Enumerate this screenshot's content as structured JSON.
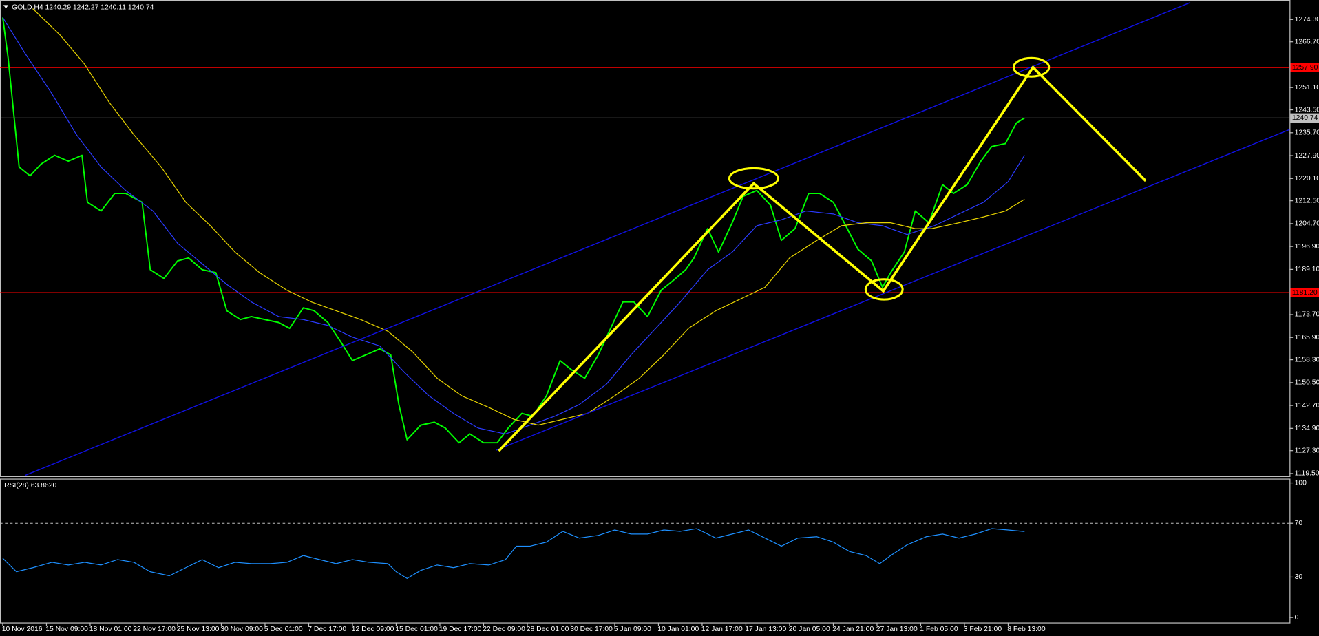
{
  "chart_data": [
    {
      "type": "line",
      "title": "GOLD,H4  1240.29 1242.27 1240.11 1240.74",
      "xlim": [
        -1,
        471
      ],
      "xticks": [
        {
          "value": 0,
          "label": "10 Nov 2016"
        },
        {
          "value": 16,
          "label": "15 Nov 09:00"
        },
        {
          "value": 32,
          "label": "18 Nov 01:00"
        },
        {
          "value": 48,
          "label": "22 Nov 17:00"
        },
        {
          "value": 64,
          "label": "25 Nov 13:00"
        },
        {
          "value": 80,
          "label": "30 Nov 09:00"
        },
        {
          "value": 96,
          "label": "5 Dec 01:00"
        },
        {
          "value": 112,
          "label": "7 Dec 17:00"
        },
        {
          "value": 128,
          "label": "12 Dec 09:00"
        },
        {
          "value": 144,
          "label": "15 Dec 01:00"
        },
        {
          "value": 160,
          "label": "19 Dec 17:00"
        },
        {
          "value": 176,
          "label": "22 Dec 09:00"
        },
        {
          "value": 192,
          "label": "28 Dec 01:00"
        },
        {
          "value": 208,
          "label": "30 Dec 17:00"
        },
        {
          "value": 224,
          "label": "5 Jan 09:00"
        },
        {
          "value": 240,
          "label": "10 Jan 01:00"
        },
        {
          "value": 256,
          "label": "12 Jan 17:00"
        },
        {
          "value": 272,
          "label": "17 Jan 13:00"
        },
        {
          "value": 288,
          "label": "20 Jan 05:00"
        },
        {
          "value": 304,
          "label": "24 Jan 21:00"
        },
        {
          "value": 320,
          "label": "27 Jan 13:00"
        },
        {
          "value": 336,
          "label": "1 Feb 05:00"
        },
        {
          "value": 352,
          "label": "3 Feb 21:00"
        },
        {
          "value": 368,
          "label": "8 Feb 13:00"
        }
      ],
      "ylim": [
        1118.6,
        1279.8
      ],
      "yticks": [
        {
          "value": 1274.3,
          "label": "1274.30"
        },
        {
          "value": 1266.7,
          "label": "1266.70"
        },
        {
          "value": 1251.1,
          "label": "1251.10"
        },
        {
          "value": 1243.5,
          "label": "1243.50"
        },
        {
          "value": 1235.7,
          "label": "1235.70"
        },
        {
          "value": 1227.9,
          "label": "1227.90"
        },
        {
          "value": 1220.1,
          "label": "1220.10"
        },
        {
          "value": 1212.5,
          "label": "1212.50"
        },
        {
          "value": 1204.7,
          "label": "1204.70"
        },
        {
          "value": 1196.9,
          "label": "1196.90"
        },
        {
          "value": 1189.1,
          "label": "1189.10"
        },
        {
          "value": 1173.7,
          "label": "1173.70"
        },
        {
          "value": 1165.9,
          "label": "1165.90"
        },
        {
          "value": 1158.3,
          "label": "1158.30"
        },
        {
          "value": 1150.5,
          "label": "1150.50"
        },
        {
          "value": 1142.7,
          "label": "1142.70"
        },
        {
          "value": 1134.9,
          "label": "1134.90"
        },
        {
          "value": 1127.3,
          "label": "1127.30"
        },
        {
          "value": 1119.5,
          "label": "1119.50"
        }
      ],
      "grid": false,
      "levels": [
        {
          "value": 1257.9,
          "label": "1257.90",
          "color": "#ff0000"
        },
        {
          "value": 1181.2,
          "label": "1181.20",
          "color": "#ff0000"
        },
        {
          "value": 1240.74,
          "color": "#c0c0c0"
        }
      ],
      "series": [
        {
          "color": "#00ff00",
          "x": [
            0,
            2,
            6,
            10,
            14,
            19,
            24,
            29,
            31,
            36,
            41,
            45,
            51,
            54,
            59,
            64,
            68,
            73,
            78,
            82,
            87,
            91,
            96,
            101,
            105,
            110,
            114,
            119,
            124,
            128,
            133,
            138,
            142,
            145,
            148,
            153,
            158,
            162,
            167,
            171,
            176,
            181,
            185,
            190,
            194,
            199,
            204,
            208,
            213,
            218,
            222,
            227,
            231,
            236,
            241,
            245,
            250,
            253,
            258,
            262,
            267,
            271,
            276,
            281,
            285,
            290,
            295,
            299,
            304,
            308,
            313,
            318,
            322,
            325,
            330,
            334,
            339,
            344,
            348,
            353,
            358,
            362,
            367,
            371,
            374
          ],
          "values": [
            1275,
            1261,
            1224,
            1221,
            1225,
            1228,
            1226,
            1228,
            1212,
            1209,
            1215,
            1215,
            1212,
            1189,
            1186,
            1192,
            1193,
            1189,
            1188,
            1175,
            1172,
            1173,
            1172,
            1171,
            1169,
            1176,
            1175,
            1171,
            1164,
            1158,
            1160,
            1162,
            1160,
            1143,
            1131,
            1136,
            1137,
            1135,
            1130,
            1133,
            1130,
            1130,
            1135,
            1140,
            1139,
            1146,
            1158,
            1155,
            1152,
            1160,
            1168,
            1178,
            1178,
            1173,
            1182,
            1185,
            1189,
            1193,
            1203,
            1195,
            1205,
            1214,
            1216,
            1211,
            1199,
            1203,
            1215,
            1215,
            1212,
            1205,
            1196,
            1192,
            1183,
            1188,
            1195,
            1209,
            1205,
            1218,
            1215,
            1218,
            1226,
            1231,
            1232,
            1239,
            1240.74
          ]
        },
        {
          "color": "#2b3bff",
          "x": [
            0,
            8,
            18,
            27,
            36,
            45,
            55,
            64,
            73,
            82,
            91,
            101,
            110,
            119,
            128,
            138,
            147,
            156,
            165,
            174,
            184,
            193,
            202,
            211,
            221,
            230,
            239,
            248,
            258,
            267,
            276,
            285,
            294,
            304,
            313,
            322,
            331,
            341,
            350,
            359,
            368,
            374
          ],
          "values": [
            1275,
            1263,
            1249,
            1235,
            1224,
            1216,
            1209,
            1198,
            1191,
            1184,
            1178,
            1173,
            1172,
            1170,
            1166,
            1163,
            1154,
            1146,
            1140,
            1135,
            1133,
            1136,
            1139,
            1143,
            1150,
            1160,
            1169,
            1178,
            1189,
            1195,
            1204,
            1206,
            1209,
            1208,
            1205,
            1204,
            1201,
            1204,
            1208,
            1212,
            1219,
            1228
          ]
        },
        {
          "color": "#e6d200",
          "x": [
            11,
            21,
            30,
            39,
            48,
            58,
            67,
            76,
            85,
            94,
            104,
            113,
            122,
            131,
            141,
            150,
            159,
            168,
            178,
            187,
            196,
            205,
            214,
            224,
            233,
            242,
            251,
            261,
            270,
            279,
            288,
            298,
            307,
            316,
            325,
            334,
            340,
            350,
            359,
            367,
            374
          ],
          "values": [
            1278,
            1269,
            1259,
            1246,
            1235,
            1224,
            1212,
            1204,
            1195,
            1188,
            1182,
            1178,
            1175,
            1172,
            1168,
            1161,
            1152,
            1146,
            1142,
            1138,
            1136,
            1138,
            1140,
            1146,
            1152,
            1160,
            1169,
            1175,
            1179,
            1183,
            1193,
            1199,
            1204,
            1205,
            1205,
            1203,
            1203,
            1205,
            1207,
            1209,
            1213
          ]
        }
      ]
    },
    {
      "type": "line",
      "title": "RSI(28) 63.8620",
      "xlim": [
        -1,
        471
      ],
      "ylim": [
        0,
        100
      ],
      "yticks": [
        0,
        30,
        70,
        100
      ],
      "grid": "dashed",
      "series": [
        {
          "color": "#1e90ff",
          "x": [
            0,
            5,
            11,
            18,
            24,
            30,
            36,
            42,
            48,
            54,
            61,
            67,
            73,
            79,
            85,
            91,
            98,
            104,
            110,
            116,
            122,
            128,
            134,
            141,
            144,
            148,
            153,
            159,
            165,
            171,
            178,
            184,
            188,
            193,
            199,
            205,
            211,
            218,
            224,
            230,
            236,
            242,
            248,
            254,
            261,
            267,
            273,
            279,
            285,
            291,
            298,
            304,
            310,
            316,
            321,
            325,
            331,
            338,
            344,
            350,
            356,
            362,
            368,
            374
          ],
          "values": [
            44,
            34,
            37,
            41,
            39,
            41,
            39,
            43,
            41,
            34,
            31,
            37,
            43,
            37,
            41,
            40,
            40,
            41,
            46,
            43,
            40,
            43,
            41,
            40,
            34,
            29,
            35,
            39,
            37,
            40,
            39,
            43,
            53,
            53,
            56,
            64,
            59,
            61,
            65,
            62,
            62,
            65,
            64,
            66,
            59,
            62,
            65,
            59,
            53,
            59,
            60,
            56,
            49,
            46,
            40,
            46,
            54,
            60,
            62,
            59,
            62,
            66,
            65,
            63.86
          ]
        }
      ]
    }
  ]
}
